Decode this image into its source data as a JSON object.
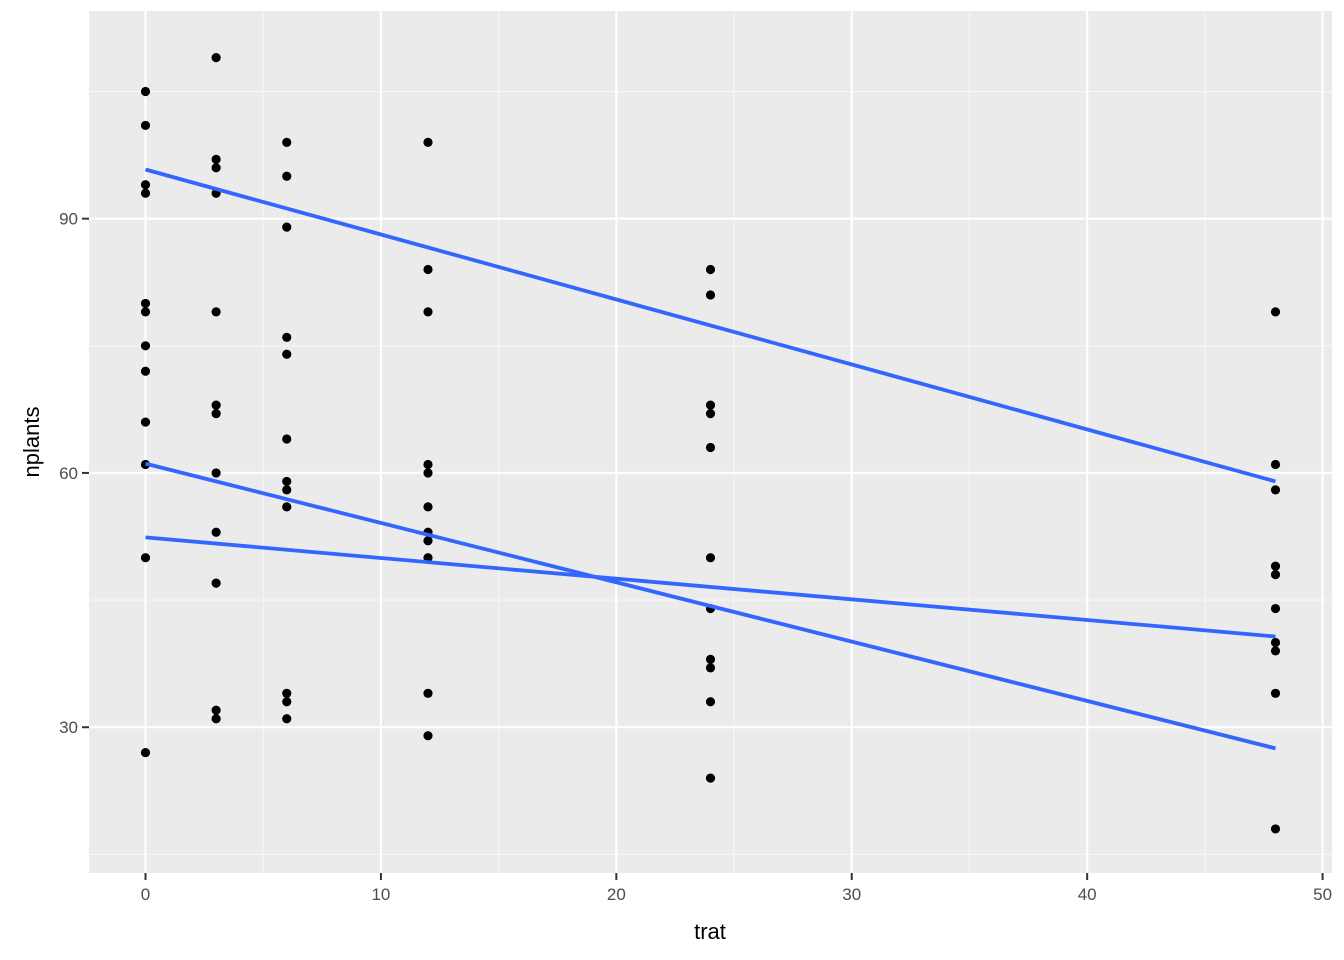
{
  "chart_data": {
    "type": "scatter",
    "xlabel": "trat",
    "ylabel": "nplants",
    "xlim": [
      -2.4,
      50.4
    ],
    "ylim": [
      12.8,
      114.5
    ],
    "x_ticks": [
      0,
      10,
      20,
      30,
      40,
      50
    ],
    "x_tick_labels": [
      "0",
      "10",
      "20",
      "30",
      "40",
      "50"
    ],
    "y_ticks": [
      30,
      60,
      90
    ],
    "y_tick_labels": [
      "30",
      "60",
      "90"
    ],
    "grid": true,
    "legend": "none",
    "colors": {
      "panel": "#ebebeb",
      "grid_major": "#ffffff",
      "grid_minor": "#f7f7f7",
      "points": "#000000",
      "lines": "#3366ff",
      "tick_label": "#4d4d4d"
    },
    "points": [
      {
        "x": 0,
        "y": 105
      },
      {
        "x": 0,
        "y": 101
      },
      {
        "x": 0,
        "y": 94
      },
      {
        "x": 0,
        "y": 93
      },
      {
        "x": 0,
        "y": 80
      },
      {
        "x": 0,
        "y": 79
      },
      {
        "x": 0,
        "y": 75
      },
      {
        "x": 0,
        "y": 72
      },
      {
        "x": 0,
        "y": 66
      },
      {
        "x": 0,
        "y": 61
      },
      {
        "x": 0,
        "y": 50
      },
      {
        "x": 0,
        "y": 27
      },
      {
        "x": 3,
        "y": 109
      },
      {
        "x": 3,
        "y": 97
      },
      {
        "x": 3,
        "y": 96
      },
      {
        "x": 3,
        "y": 93
      },
      {
        "x": 3,
        "y": 79
      },
      {
        "x": 3,
        "y": 68
      },
      {
        "x": 3,
        "y": 67
      },
      {
        "x": 3,
        "y": 60
      },
      {
        "x": 3,
        "y": 53
      },
      {
        "x": 3,
        "y": 47
      },
      {
        "x": 3,
        "y": 32
      },
      {
        "x": 3,
        "y": 31
      },
      {
        "x": 6,
        "y": 99
      },
      {
        "x": 6,
        "y": 95
      },
      {
        "x": 6,
        "y": 89
      },
      {
        "x": 6,
        "y": 76
      },
      {
        "x": 6,
        "y": 74
      },
      {
        "x": 6,
        "y": 64
      },
      {
        "x": 6,
        "y": 59
      },
      {
        "x": 6,
        "y": 58
      },
      {
        "x": 6,
        "y": 56
      },
      {
        "x": 6,
        "y": 34
      },
      {
        "x": 6,
        "y": 33
      },
      {
        "x": 6,
        "y": 31
      },
      {
        "x": 12,
        "y": 99
      },
      {
        "x": 12,
        "y": 84
      },
      {
        "x": 12,
        "y": 79
      },
      {
        "x": 12,
        "y": 61
      },
      {
        "x": 12,
        "y": 60
      },
      {
        "x": 12,
        "y": 56
      },
      {
        "x": 12,
        "y": 53
      },
      {
        "x": 12,
        "y": 52
      },
      {
        "x": 12,
        "y": 50
      },
      {
        "x": 12,
        "y": 34
      },
      {
        "x": 12,
        "y": 29
      },
      {
        "x": 24,
        "y": 84
      },
      {
        "x": 24,
        "y": 81
      },
      {
        "x": 24,
        "y": 68
      },
      {
        "x": 24,
        "y": 67
      },
      {
        "x": 24,
        "y": 63
      },
      {
        "x": 24,
        "y": 50
      },
      {
        "x": 24,
        "y": 44
      },
      {
        "x": 24,
        "y": 38
      },
      {
        "x": 24,
        "y": 37
      },
      {
        "x": 24,
        "y": 33
      },
      {
        "x": 24,
        "y": 24
      },
      {
        "x": 48,
        "y": 79
      },
      {
        "x": 48,
        "y": 61
      },
      {
        "x": 48,
        "y": 58
      },
      {
        "x": 48,
        "y": 49
      },
      {
        "x": 48,
        "y": 48
      },
      {
        "x": 48,
        "y": 44
      },
      {
        "x": 48,
        "y": 40
      },
      {
        "x": 48,
        "y": 39
      },
      {
        "x": 48,
        "y": 34
      },
      {
        "x": 48,
        "y": 18
      }
    ],
    "fit_lines": [
      {
        "x": [
          0,
          48
        ],
        "y": [
          95.8,
          59.0
        ]
      },
      {
        "x": [
          0,
          48
        ],
        "y": [
          61.1,
          27.5
        ]
      },
      {
        "x": [
          0,
          48
        ],
        "y": [
          52.4,
          40.7
        ]
      }
    ]
  }
}
